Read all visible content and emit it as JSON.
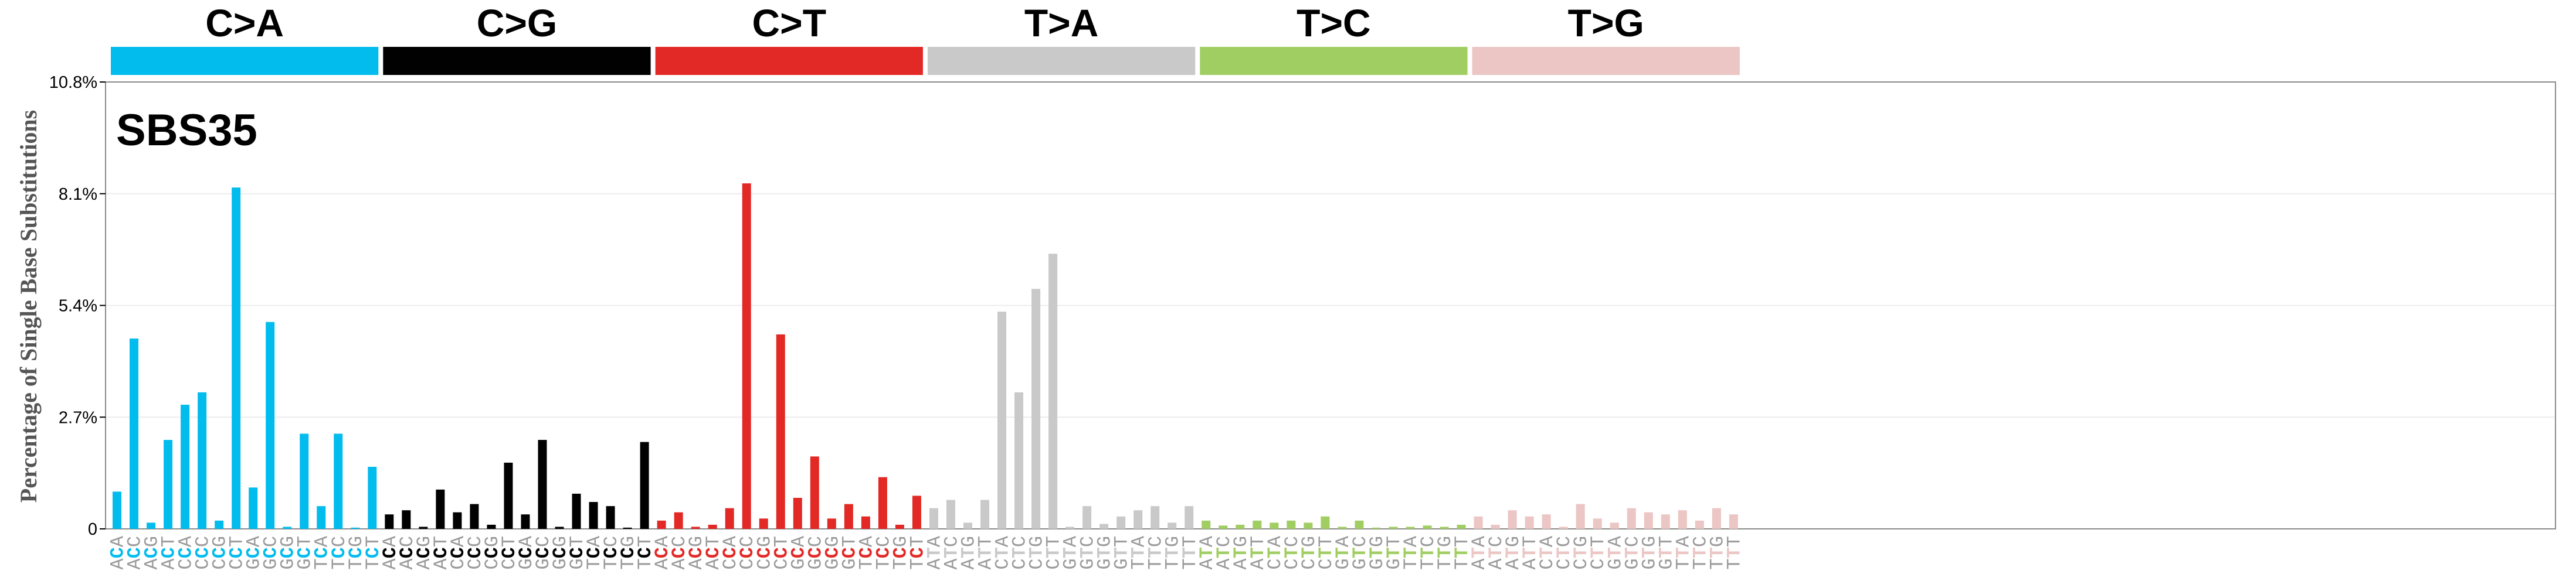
{
  "chart_data": {
    "type": "bar",
    "title": "SBS35",
    "ylabel": "Percentage of Single Base Substitutions",
    "ylim": [
      0,
      10.8
    ],
    "yticks": [
      "0",
      "2.7%",
      "5.4%",
      "8.1%",
      "10.8%"
    ],
    "grid": true,
    "groups": [
      {
        "name": "C>A",
        "ref": "C",
        "color": "#03BCEE"
      },
      {
        "name": "C>G",
        "ref": "C",
        "color": "#010101"
      },
      {
        "name": "C>T",
        "ref": "C",
        "color": "#E32926"
      },
      {
        "name": "T>A",
        "ref": "T",
        "color": "#CAC9C9"
      },
      {
        "name": "T>C",
        "ref": "T",
        "color": "#A1CE63"
      },
      {
        "name": "T>G",
        "ref": "T",
        "color": "#EBC6C4"
      }
    ],
    "contexts": [
      "A_A",
      "A_C",
      "A_G",
      "A_T",
      "C_A",
      "C_C",
      "C_G",
      "C_T",
      "G_A",
      "G_C",
      "G_G",
      "G_T",
      "T_A",
      "T_C",
      "T_G",
      "T_T"
    ],
    "series": [
      {
        "name": "C>A",
        "values": [
          0.9,
          4.6,
          0.15,
          2.15,
          3.0,
          3.3,
          0.2,
          8.25,
          1.0,
          5.0,
          0.05,
          2.3,
          0.55,
          2.3,
          0.03,
          1.5
        ]
      },
      {
        "name": "C>G",
        "values": [
          0.35,
          0.45,
          0.05,
          0.95,
          0.4,
          0.6,
          0.1,
          1.6,
          0.35,
          2.15,
          0.05,
          0.85,
          0.65,
          0.55,
          0.03,
          2.1
        ]
      },
      {
        "name": "C>T",
        "values": [
          0.2,
          0.4,
          0.05,
          0.1,
          0.5,
          8.35,
          0.25,
          4.7,
          0.75,
          1.75,
          0.25,
          0.6,
          0.3,
          1.25,
          0.1,
          0.8
        ]
      },
      {
        "name": "T>A",
        "values": [
          0.5,
          0.7,
          0.15,
          0.7,
          5.25,
          3.3,
          5.8,
          6.65,
          0.05,
          0.55,
          0.12,
          0.3,
          0.45,
          0.55,
          0.15,
          0.55
        ]
      },
      {
        "name": "T>C",
        "values": [
          0.2,
          0.08,
          0.1,
          0.2,
          0.15,
          0.2,
          0.15,
          0.3,
          0.05,
          0.2,
          0.03,
          0.05,
          0.05,
          0.08,
          0.05,
          0.1
        ]
      },
      {
        "name": "T>G",
        "values": [
          0.3,
          0.1,
          0.45,
          0.3,
          0.35,
          0.05,
          0.6,
          0.25,
          0.15,
          0.5,
          0.4,
          0.35,
          0.45,
          0.2,
          0.5,
          0.35
        ]
      }
    ]
  }
}
